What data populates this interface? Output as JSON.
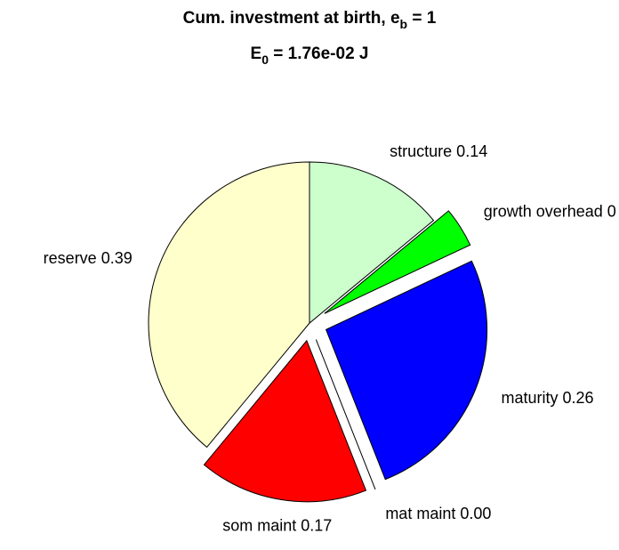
{
  "chart_data": {
    "type": "pie",
    "title": {
      "main": "Cum. investment at birth, e",
      "sub": "b",
      "end": " = 1"
    },
    "subtitle": {
      "main": "E",
      "sub": "0",
      "end": " = 1.76e-02 J"
    },
    "categories": [
      "structure 0.14",
      "growth overhead 0",
      "maturity 0.26",
      "mat maint 0.00",
      "som maint 0.17",
      "reserve 0.39"
    ],
    "values": [
      0.14,
      0.04,
      0.26,
      0,
      0.17,
      0.39
    ],
    "colors": [
      "#ccffcc",
      "#00ff00",
      "#0000ff",
      "#ff00ff",
      "#ff0000",
      "#ffffcc"
    ],
    "explode": [
      false,
      true,
      true,
      true,
      true,
      false
    ],
    "start_angle": "top",
    "direction": "clockwise"
  }
}
